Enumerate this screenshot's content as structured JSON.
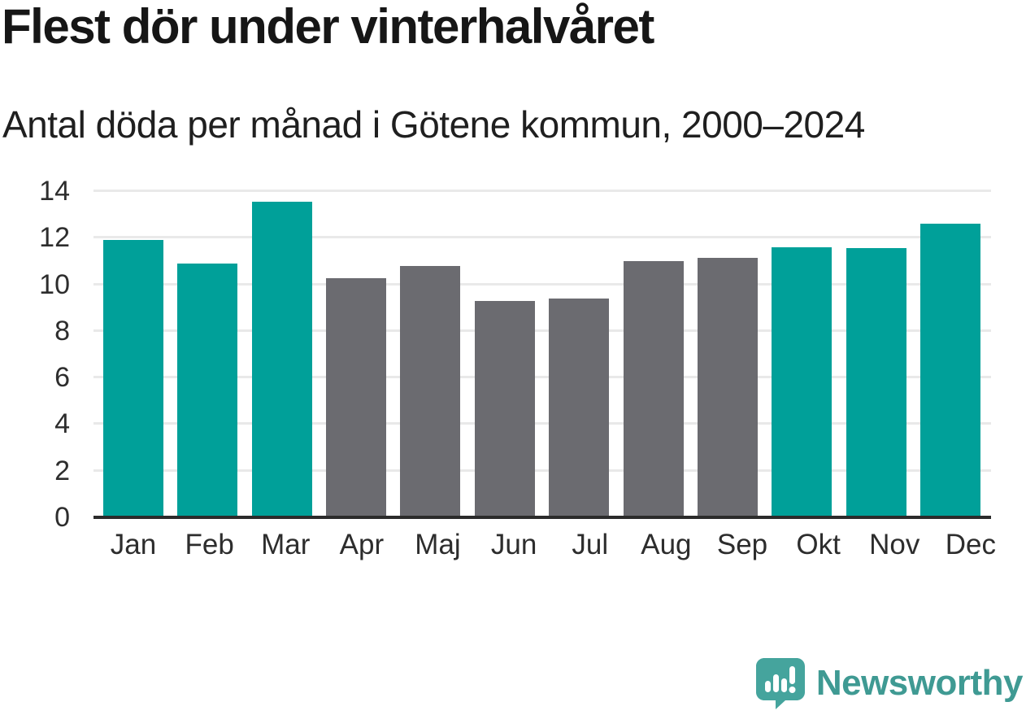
{
  "header": {
    "title": "Flest dör under vinterhalvåret",
    "subtitle": "Antal döda per månad i Götene kommun, 2000–2024"
  },
  "chart_data": {
    "type": "bar",
    "title": "Flest dör under vinterhalvåret",
    "subtitle": "Antal döda per månad i Götene kommun, 2000–2024",
    "categories": [
      "Jan",
      "Feb",
      "Mar",
      "Apr",
      "Maj",
      "Jun",
      "Jul",
      "Aug",
      "Sep",
      "Okt",
      "Nov",
      "Dec"
    ],
    "values": [
      11.9,
      10.9,
      13.55,
      10.25,
      10.8,
      9.3,
      9.4,
      11.0,
      11.15,
      11.6,
      11.55,
      12.6
    ],
    "bar_colors": [
      "teal",
      "teal",
      "teal",
      "gray",
      "gray",
      "gray",
      "gray",
      "gray",
      "gray",
      "teal",
      "teal",
      "teal"
    ],
    "colors": {
      "teal": "#00a099",
      "gray": "#6b6b70"
    },
    "xlabel": "",
    "ylabel": "",
    "ylim": [
      0,
      14
    ],
    "yticks": [
      0,
      2,
      4,
      6,
      8,
      10,
      12,
      14
    ],
    "grid": true,
    "legend": "none",
    "gridline_color": "#e9e9e9",
    "axis_color": "#2b2b2b"
  },
  "footer": {
    "brand": "Newsworthy",
    "brand_color": "#3f9a93",
    "logo_color": "#45a49d",
    "logo_icon": "speech-bubble-with-bar-chart-and-exclamation"
  }
}
